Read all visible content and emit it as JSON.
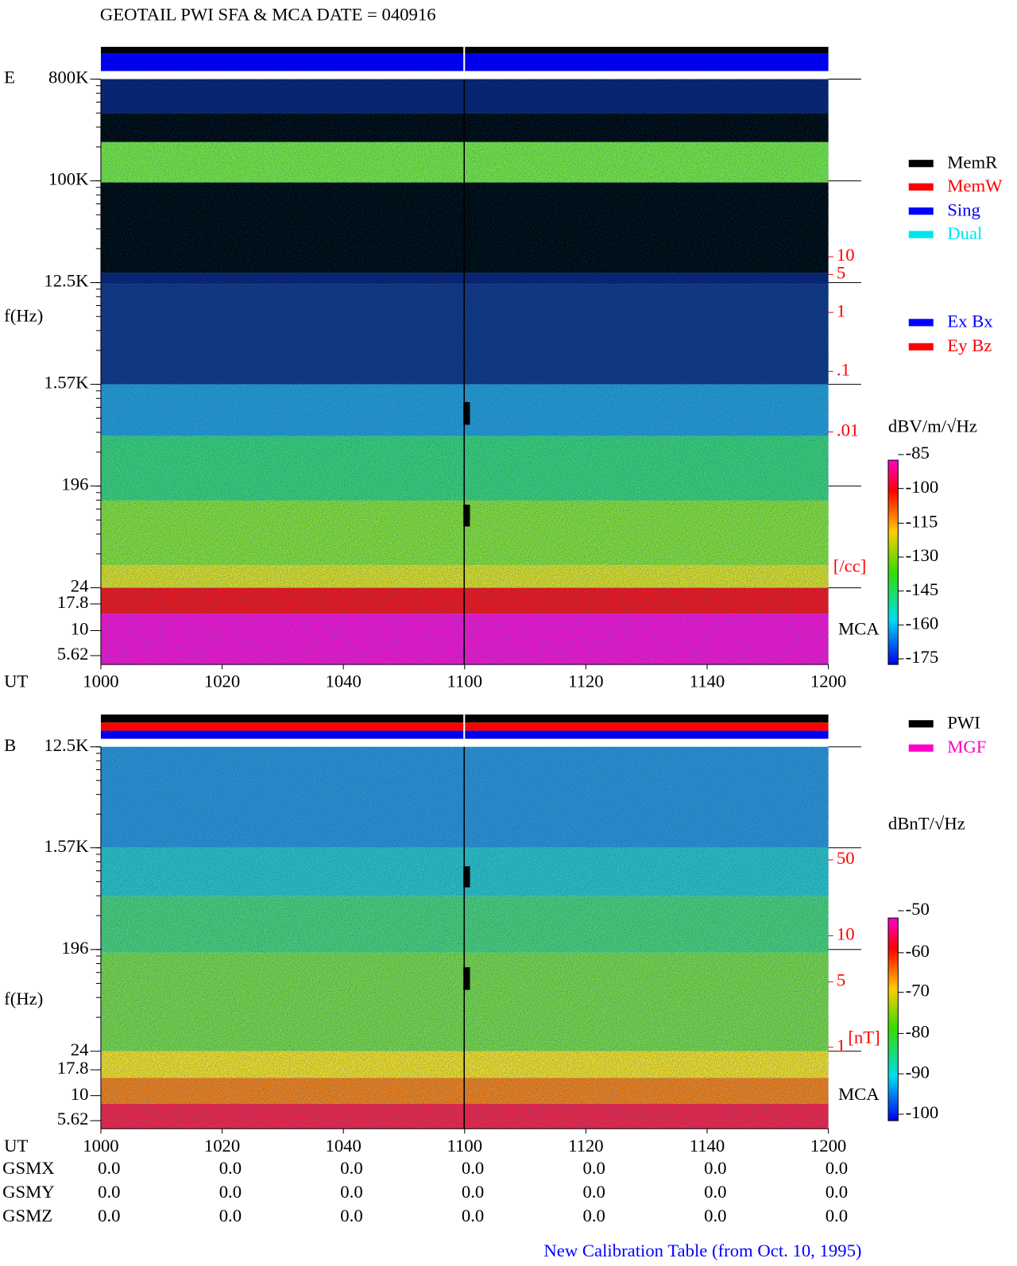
{
  "title": "GEOTAIL   PWI SFA & MCA    DATE = 040916",
  "panels": [
    {
      "name": "E",
      "y_label": "f(Hz)",
      "x_label": "UT",
      "yticks": [
        "800K",
        "100K",
        "12.5K",
        "1.57K",
        "196",
        "24",
        "17.8",
        "10",
        "5.62"
      ],
      "xticks": [
        "1000",
        "1020",
        "1040",
        "1100",
        "1120",
        "1140",
        "1200"
      ],
      "right_ticks": [
        "10",
        "5",
        "1",
        ".1",
        ".01"
      ],
      "right_unit": "[/cc]",
      "mca": "MCA",
      "colorbar_unit": "dBV/m/√Hz",
      "colorbar_ticks": [
        "-85",
        "-100",
        "-115",
        "-130",
        "-145",
        "-160",
        "-175"
      ],
      "legends": [
        [
          {
            "label": "MemR",
            "color": "#000000"
          },
          {
            "label": "MemW",
            "color": "#ff0000"
          },
          {
            "label": "Sing",
            "color": "#0000ff"
          },
          {
            "label": "Dual",
            "color": "#00e5ee"
          }
        ],
        [
          {
            "label": "Ex Bx",
            "color": "#0000ff"
          },
          {
            "label": "Ey Bz",
            "color": "#ff0000"
          }
        ]
      ]
    },
    {
      "name": "B",
      "y_label": "f(Hz)",
      "x_label": "UT",
      "yticks": [
        "12.5K",
        "1.57K",
        "196",
        "24",
        "17.8",
        "10",
        "5.62"
      ],
      "xticks": [
        "1000",
        "1020",
        "1040",
        "1100",
        "1120",
        "1140",
        "1200"
      ],
      "right_ticks": [
        "50",
        "10",
        "5",
        "1"
      ],
      "right_unit": "[nT]",
      "mca": "MCA",
      "colorbar_unit": "dBnT/√Hz",
      "colorbar_ticks": [
        "-50",
        "-60",
        "-70",
        "-80",
        "-90",
        "-100"
      ],
      "legends": [
        [
          {
            "label": "PWI",
            "color": "#000000"
          },
          {
            "label": "MGF",
            "color": "#ff00cc"
          }
        ]
      ]
    }
  ],
  "gsm": [
    {
      "label": "GSMX",
      "values": [
        "0.0",
        "0.0",
        "0.0",
        "0.0",
        "0.0",
        "0.0",
        "0.0"
      ]
    },
    {
      "label": "GSMY",
      "values": [
        "0.0",
        "0.0",
        "0.0",
        "0.0",
        "0.0",
        "0.0",
        "0.0"
      ]
    },
    {
      "label": "GSMZ",
      "values": [
        "0.0",
        "0.0",
        "0.0",
        "0.0",
        "0.0",
        "0.0",
        "0.0"
      ]
    }
  ],
  "footer": "New Calibration Table (from Oct. 10, 1995)"
}
